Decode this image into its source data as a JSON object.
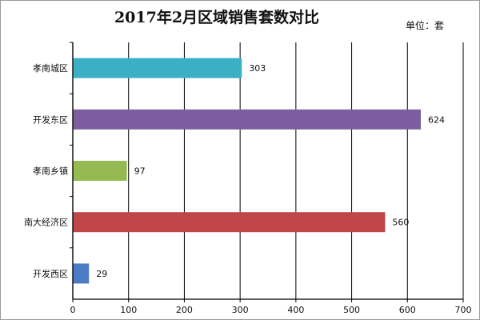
{
  "chart_data": {
    "type": "bar",
    "orientation": "horizontal",
    "title": "2017年2月区域销售套数对比",
    "unit_label": "单位：套",
    "categories": [
      "孝南城区",
      "开发东区",
      "孝南乡镇",
      "南大经济区",
      "开发西区"
    ],
    "values": [
      303,
      624,
      97,
      560,
      29
    ],
    "colors": [
      "#3bb0c5",
      "#7c5ea0",
      "#96ba52",
      "#c0464a",
      "#4a7bc4"
    ],
    "xlim": [
      0,
      700
    ],
    "x_ticks": [
      0,
      100,
      200,
      300,
      400,
      500,
      600,
      700
    ],
    "grid": "vertical",
    "legend": "none"
  }
}
